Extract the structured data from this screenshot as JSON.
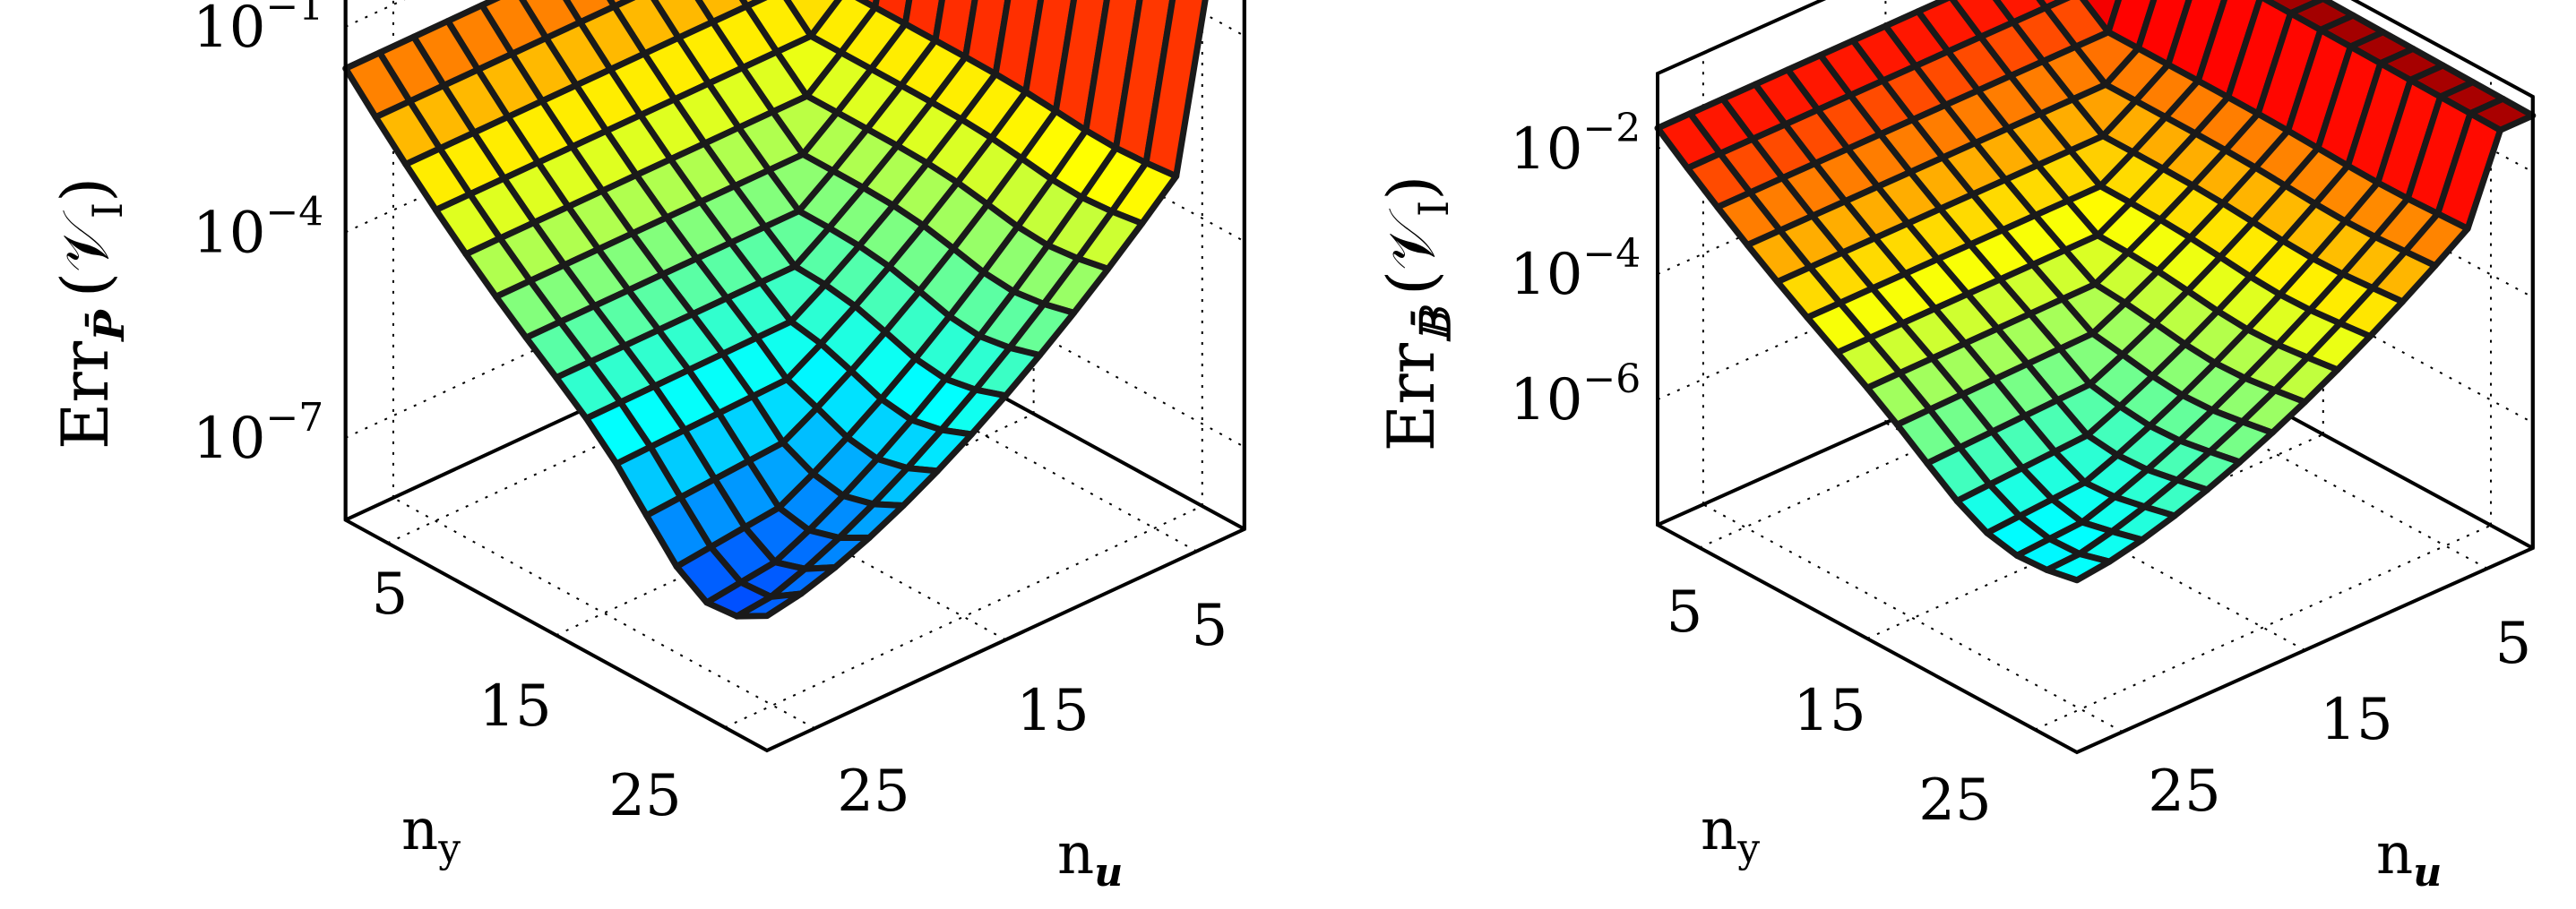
{
  "chart_data": [
    {
      "type": "surface",
      "zlabel": {
        "main": "Err",
        "sub": "P̄",
        "paren": "(𝒱",
        "paren_sub": "I",
        "paren_close": ")"
      },
      "xlabel": {
        "main": "n",
        "sub": "y"
      },
      "ylabel": {
        "main": "n",
        "sub": "u"
      },
      "z_scale": "log",
      "z_tick_labels": [
        {
          "base": "10",
          "exp": "−1",
          "value": -1
        },
        {
          "base": "10",
          "exp": "−4",
          "value": -4
        },
        {
          "base": "10",
          "exp": "−7",
          "value": -7
        }
      ],
      "ny_ticks": [
        "5",
        "15",
        "25"
      ],
      "nu_ticks": [
        "5",
        "15",
        "25"
      ],
      "zlim_log10": [
        -8.2,
        0.3
      ],
      "grid": true,
      "colormap": "jet",
      "params": {
        "floor": -8.0,
        "base_slope": 0.07,
        "wall_height": 0.3,
        "mid": -3.5,
        "scale": 4.2,
        "dip_amp": 0.9,
        "dip_center": 0.15,
        "dip_width": 0.03
      }
    },
    {
      "type": "surface",
      "zlabel": {
        "main": "Err",
        "sub": "𝔹̄",
        "paren": "(𝒱",
        "paren_sub": "I",
        "paren_close": ")"
      },
      "xlabel": {
        "main": "n",
        "sub": "y"
      },
      "ylabel": {
        "main": "n",
        "sub": "u"
      },
      "z_scale": "log",
      "z_tick_labels": [
        {
          "base": "10",
          "exp": "−2",
          "value": -2
        },
        {
          "base": "10",
          "exp": "−4",
          "value": -4
        },
        {
          "base": "10",
          "exp": "−6",
          "value": -6
        }
      ],
      "ny_ticks": [
        "5",
        "15",
        "25"
      ],
      "nu_ticks": [
        "5",
        "15",
        "25"
      ],
      "zlim_log10": [
        -8.0,
        -0.8
      ],
      "grid": true,
      "colormap": "jet",
      "params": {
        "floor": -7.8,
        "base_slope": 0.05,
        "wall_height": -1.0,
        "mid": -3.2,
        "scale": 3.4,
        "dip_amp": 0.5,
        "dip_center": 0.2,
        "dip_width": 0.04
      }
    }
  ]
}
